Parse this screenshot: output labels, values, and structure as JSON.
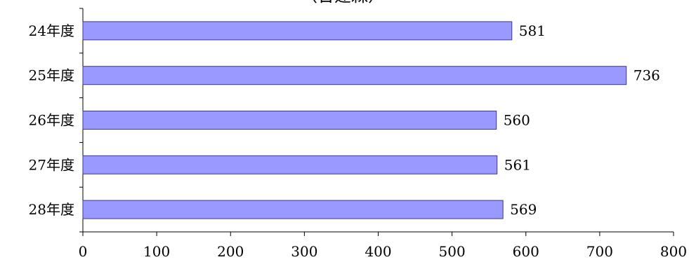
{
  "chart_data": {
    "type": "bar",
    "orientation": "horizontal",
    "title": "（合建森）",
    "categories": [
      "24年度",
      "25年度",
      "26年度",
      "27年度",
      "28年度"
    ],
    "values": [
      581,
      736,
      560,
      561,
      569
    ],
    "data_labels": [
      "581",
      "736",
      "560",
      "561",
      "569"
    ],
    "xlim": [
      0,
      800
    ],
    "x_ticks": [
      0,
      100,
      200,
      300,
      400,
      500,
      600,
      700,
      800
    ],
    "x_tick_labels": [
      "0",
      "100",
      "200",
      "300",
      "400",
      "500",
      "600",
      "700",
      "800"
    ],
    "xlabel": "",
    "ylabel": "",
    "grid": false,
    "legend": "none",
    "colors": {
      "bar_fill": "#9999ff",
      "bar_stroke": "#3a3a8c",
      "axis": "#000000",
      "text": "#000000"
    }
  }
}
